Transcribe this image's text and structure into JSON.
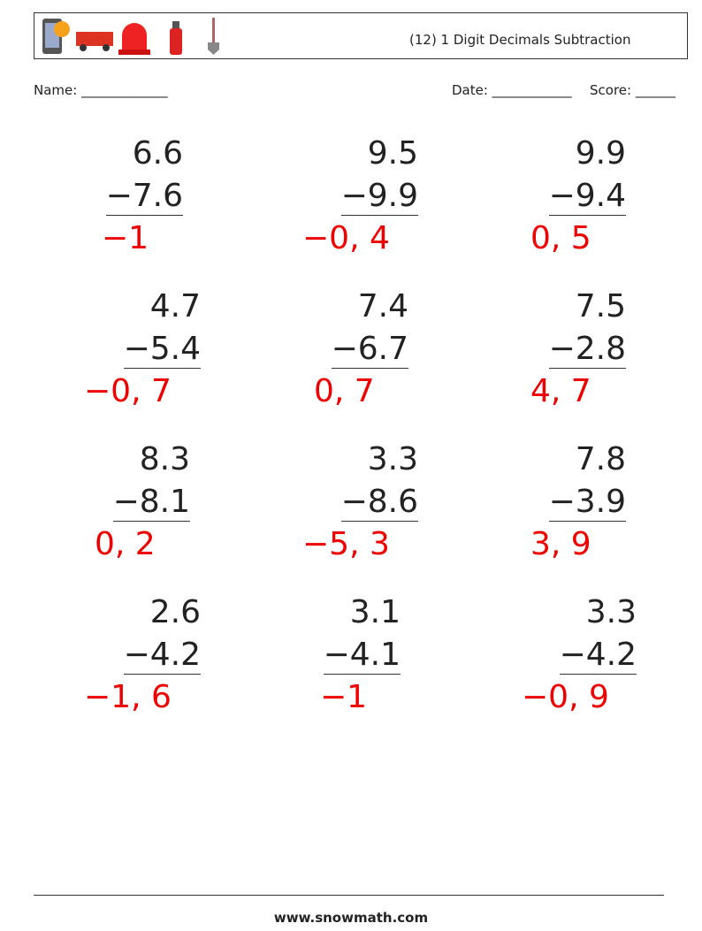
{
  "header": {
    "title": "(12) 1 Digit Decimals Subtraction"
  },
  "fields": {
    "name": "Name: _____________",
    "date": "Date: ____________",
    "score": "Score: ______"
  },
  "problems": [
    {
      "top": "6.6",
      "bottom": "−7.6",
      "answer": "−1"
    },
    {
      "top": "9.5",
      "bottom": "−9.9",
      "answer": "−0, 4"
    },
    {
      "top": "9.9",
      "bottom": "−9.4",
      "answer": "0, 5"
    },
    {
      "top": "4.7",
      "bottom": "−5.4",
      "answer": "−0, 7"
    },
    {
      "top": "7.4",
      "bottom": "−6.7",
      "answer": "0, 7"
    },
    {
      "top": "7.5",
      "bottom": "−2.8",
      "answer": "4, 7"
    },
    {
      "top": "8.3",
      "bottom": "−8.1",
      "answer": "0, 2"
    },
    {
      "top": "3.3",
      "bottom": "−8.6",
      "answer": "−5, 3"
    },
    {
      "top": "7.8",
      "bottom": "−3.9",
      "answer": "3, 9"
    },
    {
      "top": "2.6",
      "bottom": "−4.2",
      "answer": "−1, 6"
    },
    {
      "top": "3.1",
      "bottom": "−4.1",
      "answer": "−1"
    },
    {
      "top": "3.3",
      "bottom": "−4.2",
      "answer": "−0, 9"
    }
  ],
  "footer": {
    "site": "www.snowmath.com"
  }
}
